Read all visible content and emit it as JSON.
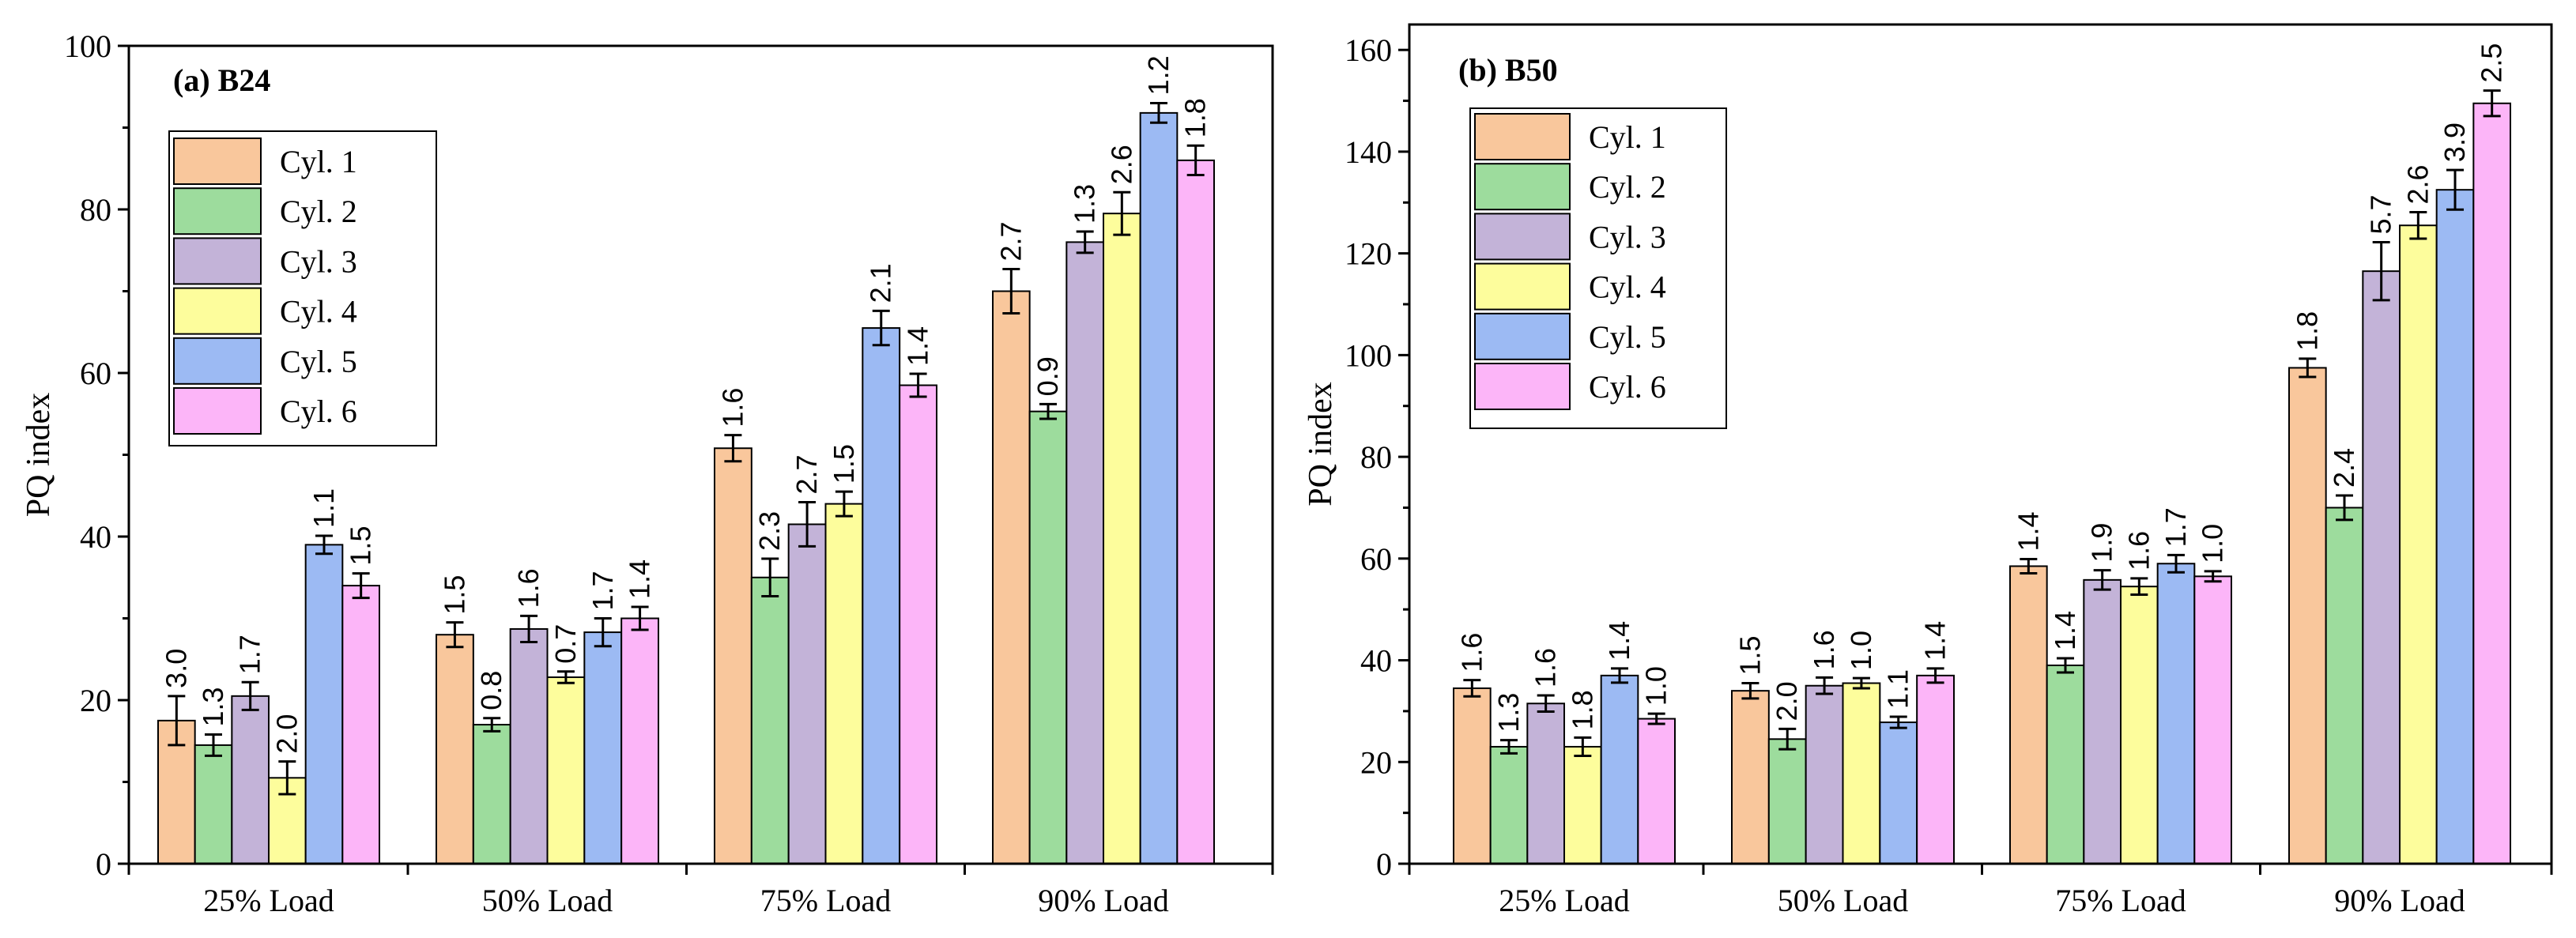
{
  "chart_data": [
    {
      "type": "bar",
      "title": "(a) B24",
      "xlabel": "",
      "ylabel": "PQ index",
      "ylim": [
        0,
        100
      ],
      "yticks": [
        0,
        20,
        40,
        60,
        80,
        100
      ],
      "categories": [
        "25% Load",
        "50% Load",
        "75% Load",
        "90% Load"
      ],
      "legend_position": "top-left",
      "series": [
        {
          "name": "Cyl. 1",
          "color": "#f9c79c",
          "values": [
            17.5,
            28.0,
            50.8,
            70.0
          ],
          "errors": [
            3.0,
            1.5,
            1.6,
            2.7
          ],
          "labels": [
            "3.0",
            "1.5",
            "1.6",
            "2.7"
          ]
        },
        {
          "name": "Cyl. 2",
          "color": "#9ddc9d",
          "values": [
            14.5,
            17.0,
            35.0,
            55.3
          ],
          "errors": [
            1.3,
            0.8,
            2.3,
            0.9
          ],
          "labels": [
            "1.3",
            "0.8",
            "2.3",
            "0.9"
          ]
        },
        {
          "name": "Cyl. 3",
          "color": "#c3b3d8",
          "values": [
            20.5,
            28.7,
            41.5,
            76.0
          ],
          "errors": [
            1.7,
            1.6,
            2.7,
            1.3
          ],
          "labels": [
            "1.7",
            "1.6",
            "2.7",
            "1.3"
          ]
        },
        {
          "name": "Cyl. 4",
          "color": "#fdfd9c",
          "values": [
            10.5,
            22.8,
            44.0,
            79.5
          ],
          "errors": [
            2.0,
            0.7,
            1.5,
            2.6
          ],
          "labels": [
            "2.0",
            "0.7",
            "1.5",
            "2.6"
          ]
        },
        {
          "name": "Cyl. 5",
          "color": "#9cbaf3",
          "values": [
            39.0,
            28.3,
            65.5,
            91.8
          ],
          "errors": [
            1.1,
            1.7,
            2.1,
            1.2
          ],
          "labels": [
            "1.1",
            "1.7",
            "2.1",
            "1.2"
          ]
        },
        {
          "name": "Cyl. 6",
          "color": "#fcb5f8",
          "values": [
            34.0,
            30.0,
            58.5,
            86.0
          ],
          "errors": [
            1.5,
            1.4,
            1.4,
            1.8
          ],
          "labels": [
            "1.5",
            "1.4",
            "1.4",
            "1.8"
          ]
        }
      ]
    },
    {
      "type": "bar",
      "title": "(b) B50",
      "xlabel": "",
      "ylabel": "PQ index",
      "ylim": [
        0,
        165
      ],
      "yticks": [
        0,
        20,
        40,
        60,
        80,
        100,
        120,
        140,
        160
      ],
      "categories": [
        "25% Load",
        "50% Load",
        "75% Load",
        "90% Load"
      ],
      "legend_position": "top-left",
      "series": [
        {
          "name": "Cyl. 1",
          "color": "#f9c79c",
          "values": [
            34.5,
            34.0,
            58.5,
            97.5
          ],
          "errors": [
            1.6,
            1.5,
            1.4,
            1.8
          ],
          "labels": [
            "1.6",
            "1.5",
            "1.4",
            "1.8"
          ]
        },
        {
          "name": "Cyl. 2",
          "color": "#9ddc9d",
          "values": [
            23.0,
            24.5,
            39.0,
            70.0
          ],
          "errors": [
            1.3,
            2.0,
            1.4,
            2.4
          ],
          "labels": [
            "1.3",
            "2.0",
            "1.4",
            "2.4"
          ]
        },
        {
          "name": "Cyl. 3",
          "color": "#c3b3d8",
          "values": [
            31.5,
            35.0,
            55.8,
            116.5
          ],
          "errors": [
            1.6,
            1.6,
            1.9,
            5.7
          ],
          "labels": [
            "1.6",
            "1.6",
            "1.9",
            "5.7"
          ]
        },
        {
          "name": "Cyl. 4",
          "color": "#fdfd9c",
          "values": [
            23.0,
            35.5,
            54.5,
            125.5
          ],
          "errors": [
            1.8,
            1.0,
            1.6,
            2.6
          ],
          "labels": [
            "1.8",
            "1.0",
            "1.6",
            "2.6"
          ]
        },
        {
          "name": "Cyl. 5",
          "color": "#9cbaf3",
          "values": [
            37.0,
            27.8,
            59.0,
            132.5
          ],
          "errors": [
            1.4,
            1.1,
            1.7,
            3.9
          ],
          "labels": [
            "1.4",
            "1.1",
            "1.7",
            "3.9"
          ]
        },
        {
          "name": "Cyl. 6",
          "color": "#fcb5f8",
          "values": [
            28.5,
            37.0,
            56.5,
            149.5
          ],
          "errors": [
            1.0,
            1.4,
            1.0,
            2.5
          ],
          "labels": [
            "1.0",
            "1.4",
            "1.0",
            "2.5"
          ]
        }
      ]
    }
  ]
}
